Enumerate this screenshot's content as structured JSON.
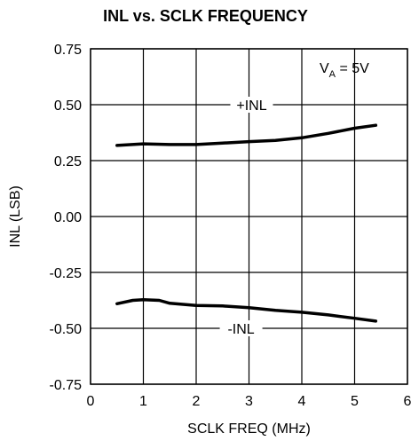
{
  "chart_data": {
    "type": "line",
    "title": "INL vs. SCLK FREQUENCY",
    "xlabel": "SCLK FREQ (MHz)",
    "ylabel": "INL (LSB)",
    "xlim": [
      0,
      6
    ],
    "ylim": [
      -0.75,
      0.75
    ],
    "x_ticks": [
      "0",
      "1",
      "2",
      "3",
      "4",
      "5",
      "6"
    ],
    "y_ticks": [
      "0.75",
      "0.50",
      "0.25",
      "0.00",
      "-0.25",
      "-0.50",
      "-0.75"
    ],
    "grid": true,
    "annotation": {
      "base": "V",
      "sub": "A",
      "rest": " = 5V"
    },
    "series": [
      {
        "name": "+INL",
        "x": [
          0.5,
          1,
          1.5,
          2,
          2.5,
          3,
          3.5,
          4,
          4.5,
          5,
          5.4
        ],
        "y": [
          0.318,
          0.325,
          0.322,
          0.322,
          0.328,
          0.335,
          0.34,
          0.352,
          0.372,
          0.395,
          0.408
        ]
      },
      {
        "name": "-INL",
        "x": [
          0.5,
          0.8,
          1,
          1.3,
          1.5,
          2,
          2.5,
          3,
          3.5,
          4,
          4.5,
          5,
          5.4
        ],
        "y": [
          -0.39,
          -0.375,
          -0.372,
          -0.375,
          -0.388,
          -0.398,
          -0.4,
          -0.408,
          -0.42,
          -0.428,
          -0.44,
          -0.455,
          -0.468
        ]
      }
    ]
  }
}
